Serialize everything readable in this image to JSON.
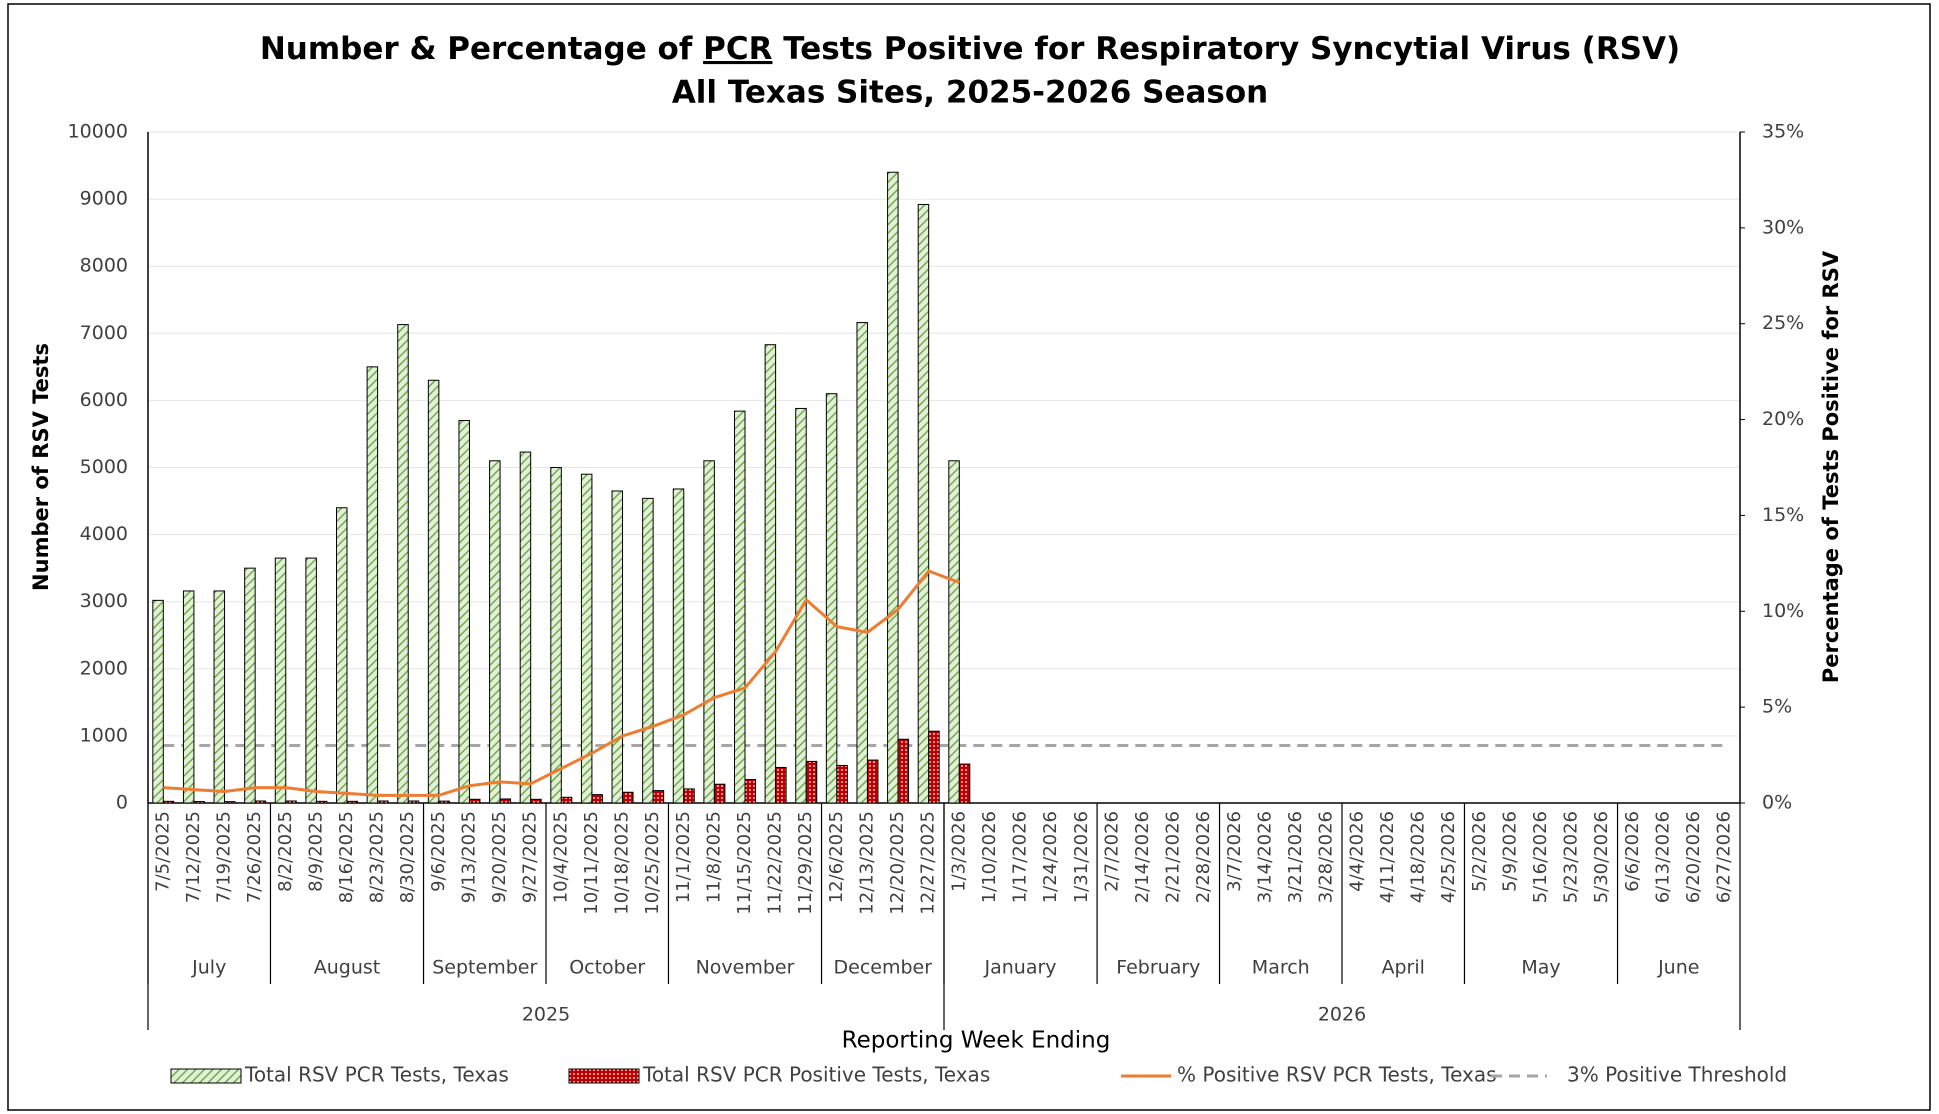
{
  "chart_data": {
    "type": "bar",
    "title": [
      "Number & Percentage of ",
      "PCR",
      " Tests Positive for Respiratory Syncytial Virus (RSV)"
    ],
    "subtitle": "All Texas Sites, 2025-2026 Season",
    "x_label": "Reporting Week Ending",
    "y_label": "Number of RSV Tests",
    "y2_label": "Percentage of Tests Positive for RSV",
    "categories": [
      "7/5/2025",
      "7/12/2025",
      "7/19/2025",
      "7/26/2025",
      "8/2/2025",
      "8/9/2025",
      "8/16/2025",
      "8/23/2025",
      "8/30/2025",
      "9/6/2025",
      "9/13/2025",
      "9/20/2025",
      "9/27/2025",
      "10/4/2025",
      "10/11/2025",
      "10/18/2025",
      "10/25/2025",
      "11/1/2025",
      "11/8/2025",
      "11/15/2025",
      "11/22/2025",
      "11/29/2025",
      "12/6/2025",
      "12/13/2025",
      "12/20/2025",
      "12/27/2025",
      "1/3/2026",
      "1/10/2026",
      "1/17/2026",
      "1/24/2026",
      "1/31/2026",
      "2/7/2026",
      "2/14/2026",
      "2/21/2026",
      "2/28/2026",
      "3/7/2026",
      "3/14/2026",
      "3/21/2026",
      "3/28/2026",
      "4/4/2026",
      "4/11/2026",
      "4/18/2026",
      "4/25/2026",
      "5/2/2026",
      "5/9/2026",
      "5/16/2026",
      "5/23/2026",
      "5/30/2026",
      "6/6/2026",
      "6/13/2026",
      "6/20/2026",
      "6/27/2026"
    ],
    "months": [
      "July",
      "August",
      "September",
      "October",
      "November",
      "December",
      "January",
      "February",
      "March",
      "April",
      "May",
      "June"
    ],
    "years": [
      "2025",
      "2026"
    ],
    "series": [
      {
        "name": "Total RSV PCR Tests, Texas",
        "type": "bar",
        "color": "#70ad47",
        "values": [
          3020,
          3160,
          3160,
          3500,
          3650,
          3650,
          4400,
          6500,
          7130,
          6300,
          5700,
          5100,
          5230,
          5000,
          4900,
          4650,
          4540,
          4680,
          5100,
          5840,
          6830,
          5880,
          6100,
          7160,
          9400,
          8920,
          5100,
          null,
          null,
          null,
          null,
          null,
          null,
          null,
          null,
          null,
          null,
          null,
          null,
          null,
          null,
          null,
          null,
          null,
          null,
          null,
          null,
          null,
          null,
          null,
          null,
          null
        ]
      },
      {
        "name": "Total RSV PCR Positive Tests, Texas",
        "type": "bar",
        "color": "#c00000",
        "values": [
          25,
          22,
          20,
          30,
          30,
          25,
          25,
          30,
          30,
          28,
          55,
          60,
          55,
          85,
          125,
          160,
          185,
          210,
          280,
          350,
          530,
          620,
          560,
          640,
          950,
          1070,
          580,
          null,
          null,
          null,
          null,
          null,
          null,
          null,
          null,
          null,
          null,
          null,
          null,
          null,
          null,
          null,
          null,
          null,
          null,
          null,
          null,
          null,
          null,
          null,
          null,
          null
        ]
      },
      {
        "name": "% Positive RSV PCR Tests, Texas",
        "type": "line",
        "axis": "y2",
        "color": "#ed7d31",
        "values": [
          0.8,
          0.7,
          0.6,
          0.8,
          0.8,
          0.6,
          0.5,
          0.4,
          0.4,
          0.4,
          0.9,
          1.1,
          1.0,
          1.8,
          2.6,
          3.5,
          4.0,
          4.6,
          5.5,
          6.0,
          7.9,
          10.6,
          9.2,
          8.9,
          10.1,
          12.1,
          11.5,
          null,
          null,
          null,
          null,
          null,
          null,
          null,
          null,
          null,
          null,
          null,
          null,
          null,
          null,
          null,
          null,
          null,
          null,
          null,
          null,
          null,
          null,
          null,
          null,
          null
        ]
      }
    ],
    "threshold": {
      "name": "3% Positive Threshold",
      "value": 3,
      "color": "#a6a6a6"
    },
    "ylim": [
      0,
      10000
    ],
    "yticks": [
      0,
      1000,
      2000,
      3000,
      4000,
      5000,
      6000,
      7000,
      8000,
      9000,
      10000
    ],
    "y2lim": [
      0,
      35
    ],
    "y2ticks": [
      {
        "value": 0,
        "label": "0%"
      },
      {
        "value": 5,
        "label": "5%"
      },
      {
        "value": 10,
        "label": "10%"
      },
      {
        "value": 15,
        "label": "15%"
      },
      {
        "value": 20,
        "label": "20%"
      },
      {
        "value": 25,
        "label": "25%"
      },
      {
        "value": 30,
        "label": "30%"
      },
      {
        "value": 35,
        "label": "35%"
      }
    ],
    "grid": true,
    "legend": "bottom"
  }
}
